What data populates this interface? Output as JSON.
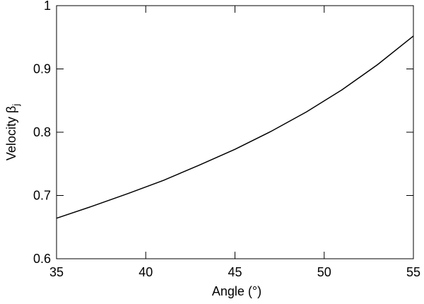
{
  "chart_data": {
    "type": "line",
    "x_label": "Angle (°)",
    "y_label": "Velocity β",
    "y_label_subscript": "j",
    "x": [
      35,
      37,
      39,
      41,
      43,
      45,
      47,
      49,
      51,
      53,
      55
    ],
    "series": [
      {
        "color": "#000000",
        "values": [
          0.664,
          0.683,
          0.703,
          0.724,
          0.748,
          0.773,
          0.801,
          0.832,
          0.867,
          0.907,
          0.952
        ]
      }
    ],
    "xlim": [
      35,
      55
    ],
    "xticks": [
      35,
      40,
      45,
      50,
      55
    ],
    "ylim": [
      0.6,
      1.0
    ],
    "yticks": [
      0.6,
      0.7,
      0.8,
      0.9,
      1.0
    ]
  }
}
